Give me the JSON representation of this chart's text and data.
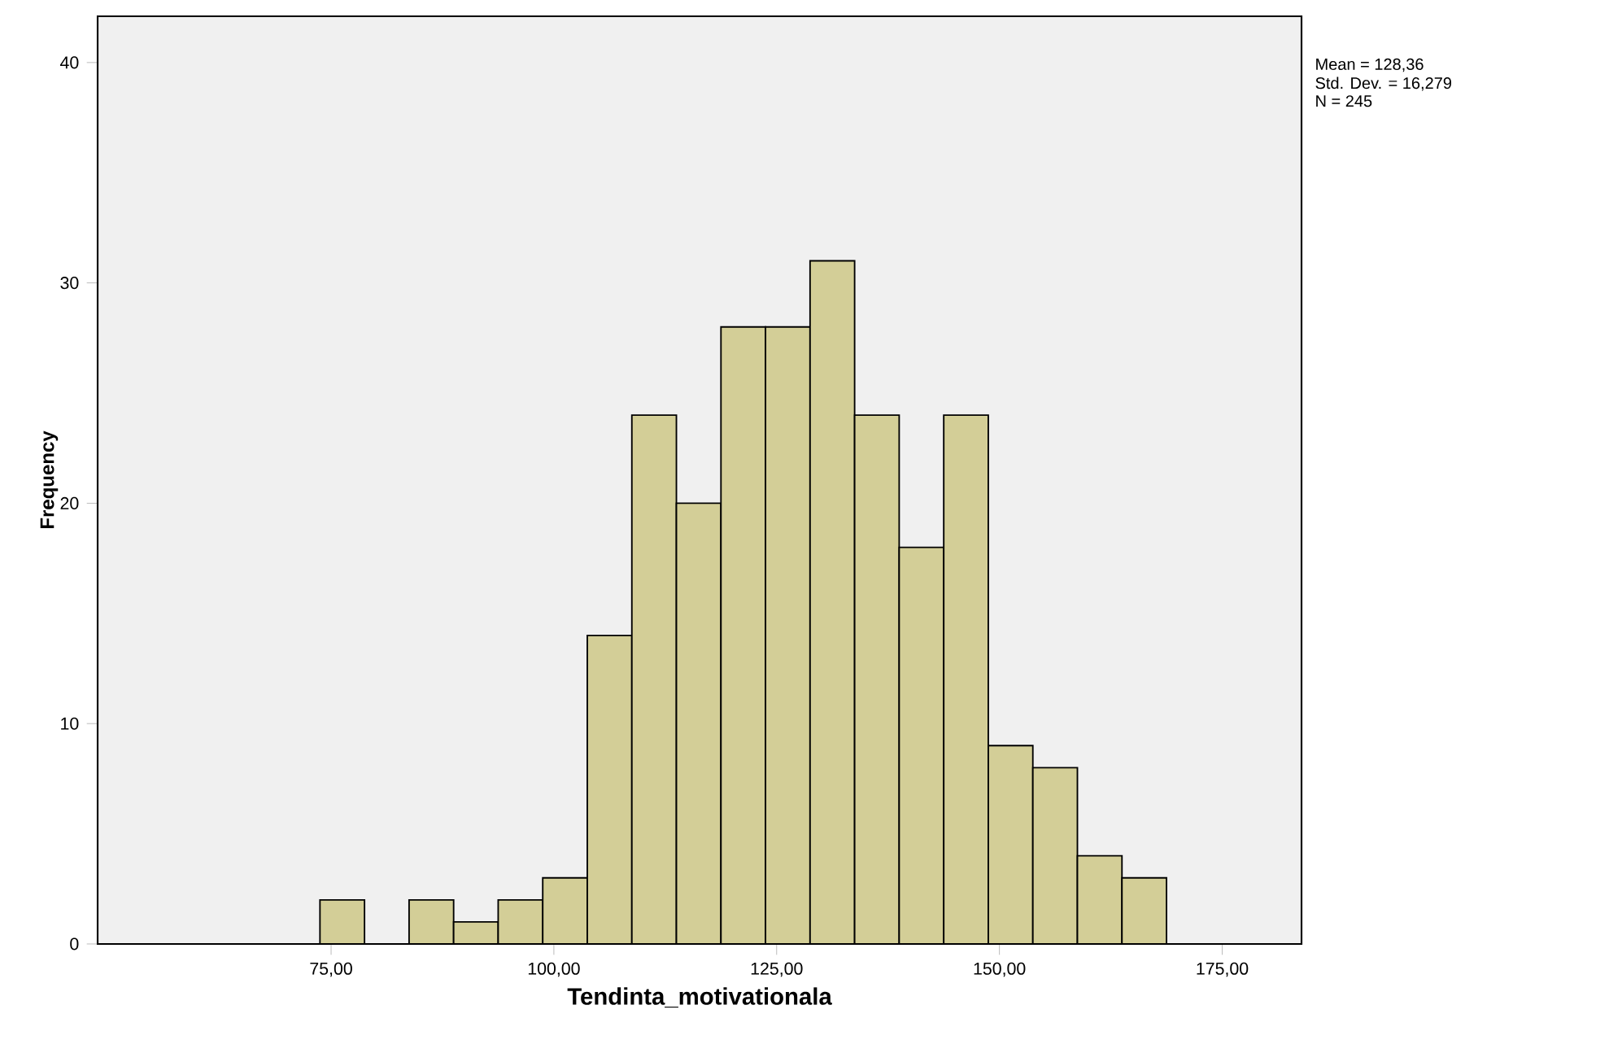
{
  "chart_data": {
    "type": "histogram",
    "xlabel": "Tendinta_motivationala",
    "ylabel": "Frequency",
    "bins": [
      73.75,
      78.75,
      83.75,
      88.75,
      93.75,
      98.75,
      103.75,
      108.75,
      113.75,
      118.75,
      123.75,
      128.75,
      133.75,
      138.75,
      143.75,
      148.75,
      153.75,
      158.75,
      163.75,
      168.75
    ],
    "values": [
      2,
      0,
      2,
      1,
      2,
      3,
      14,
      24,
      20,
      28,
      28,
      31,
      24,
      18,
      24,
      9,
      8,
      4,
      3
    ],
    "color": "#d3ce97",
    "xlim": [
      48.8,
      183.9
    ],
    "ylim": [
      0,
      42.1
    ],
    "xticks": [
      {
        "value": 75,
        "label": "75,00"
      },
      {
        "value": 100,
        "label": "100,00"
      },
      {
        "value": 125,
        "label": "125,00"
      },
      {
        "value": 150,
        "label": "150,00"
      },
      {
        "value": 175,
        "label": "175,00"
      }
    ],
    "yticks": [
      0,
      10,
      20,
      30,
      40
    ],
    "grid": false,
    "annotations": [
      "Mean = 128,36",
      "Std. Dev. = 16,279",
      "N = 245"
    ]
  }
}
